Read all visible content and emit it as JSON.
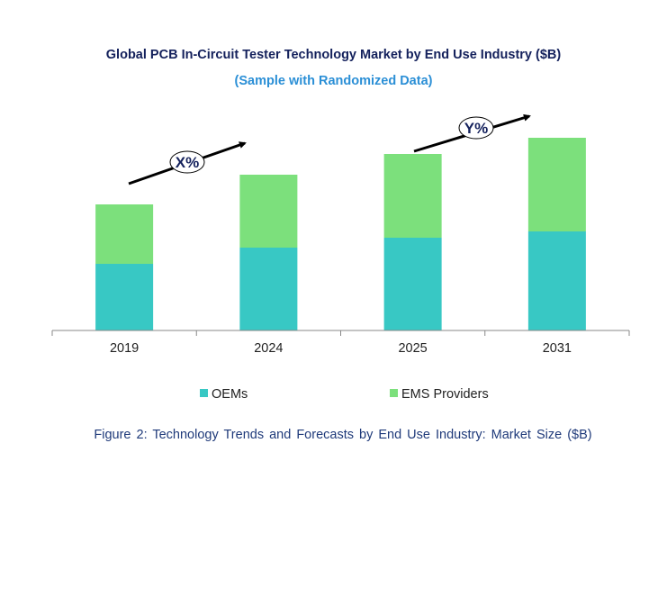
{
  "title": "Global PCB In-Circuit Tester Technology Market by End Use Industry ($B)",
  "subtitle": "(Sample with Randomized Data)",
  "caption": "Figure 2: Technology Trends and Forecasts by End Use Industry:  Market Size ($B)",
  "chart_data": {
    "type": "bar",
    "stacked": true,
    "categories": [
      "2019",
      "2024",
      "2025",
      "2031"
    ],
    "series": [
      {
        "name": "OEMs",
        "color": "#38c8c4",
        "values": [
          7.4,
          9.2,
          10.3,
          11.0
        ]
      },
      {
        "name": "EMS Providers",
        "color": "#7ce07c",
        "values": [
          6.6,
          8.1,
          9.3,
          10.4
        ]
      }
    ],
    "ylim": [
      0,
      22
    ],
    "grid": false,
    "legend": "bottom",
    "annotations": [
      {
        "label": "X%",
        "from": "2019",
        "to": "2024"
      },
      {
        "label": "Y%",
        "from": "2025",
        "to": "2031"
      }
    ]
  }
}
